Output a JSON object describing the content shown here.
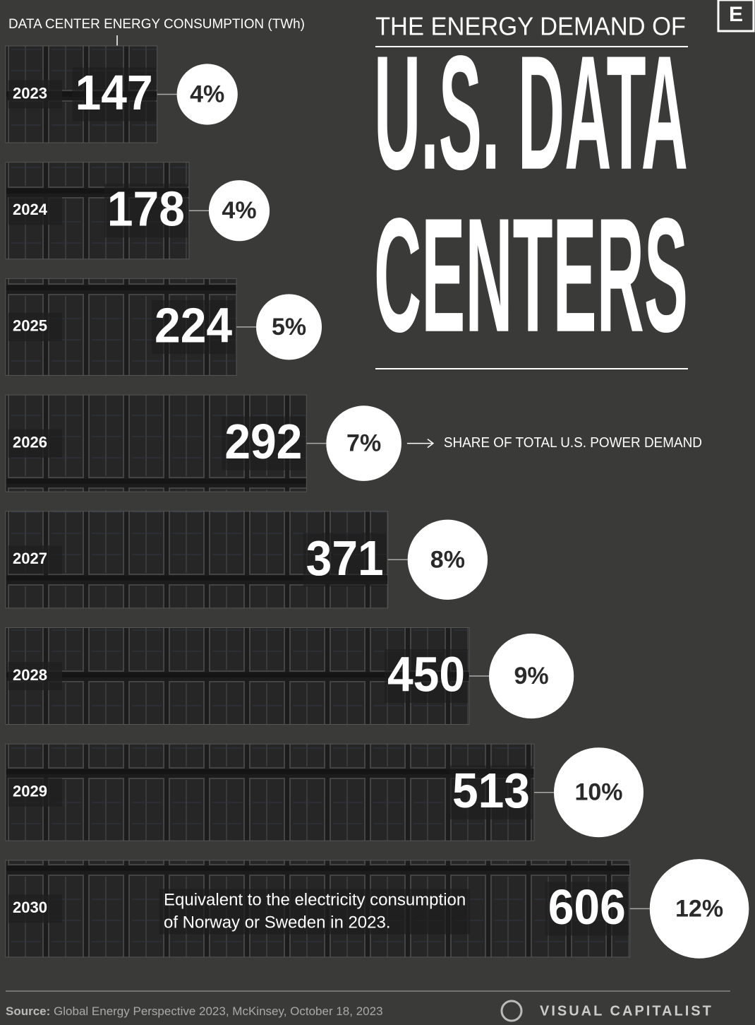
{
  "chart_data": {
    "type": "bar",
    "orientation": "horizontal",
    "supertitle": "THE ENERGY DEMAND OF",
    "title": [
      "U.S. DATA",
      "CENTERS"
    ],
    "categories": [
      "2023",
      "2024",
      "2025",
      "2026",
      "2027",
      "2028",
      "2029",
      "2030"
    ],
    "series": [
      {
        "name": "DATA CENTER ENERGY CONSUMPTION (TWh)",
        "color": "#1f1f1f",
        "values": [
          147,
          178,
          224,
          292,
          371,
          450,
          513,
          606
        ]
      },
      {
        "name": "SHARE OF TOTAL U.S. POWER DEMAND",
        "color": "#ffffff",
        "values": [
          4,
          4,
          5,
          7,
          8,
          9,
          10,
          12
        ],
        "value_labels": [
          "4%",
          "4%",
          "5%",
          "7%",
          "8%",
          "9%",
          "10%",
          "12%"
        ]
      }
    ],
    "xlim": [
      0,
      700
    ],
    "annotation": [
      "Equivalent to the electricity consumption",
      "of Norway or Sweden in 2023."
    ],
    "source_label": "Source:",
    "source": "Global Energy Perspective 2023, McKinsey, October 18, 2023",
    "brand": "VISUAL CAPITALIST",
    "corner_logo": "E"
  }
}
